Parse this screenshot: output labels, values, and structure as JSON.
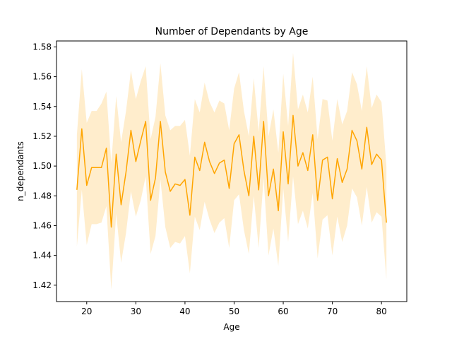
{
  "chart_data": {
    "type": "line",
    "title": "Number of Dependants by Age",
    "xlabel": "Age",
    "ylabel": "n_dependants",
    "xlim": [
      13.85,
      85.15
    ],
    "ylim": [
      1.409,
      1.584
    ],
    "xticks": [
      20,
      30,
      40,
      50,
      60,
      70,
      80
    ],
    "yticks": [
      1.42,
      1.44,
      1.46,
      1.48,
      1.5,
      1.52,
      1.54,
      1.56,
      1.58
    ],
    "ytick_labels": [
      "1.42",
      "1.44",
      "1.46",
      "1.48",
      "1.50",
      "1.52",
      "1.54",
      "1.56",
      "1.58"
    ],
    "grid": false,
    "series": [
      {
        "color": "#ffa500",
        "x": [
          18,
          19,
          20,
          21,
          22,
          23,
          24,
          25,
          26,
          27,
          28,
          29,
          30,
          31,
          32,
          33,
          34,
          35,
          36,
          37,
          38,
          39,
          40,
          41,
          42,
          43,
          44,
          45,
          46,
          47,
          48,
          49,
          50,
          51,
          52,
          53,
          54,
          55,
          56,
          57,
          58,
          59,
          60,
          61,
          62,
          63,
          64,
          65,
          66,
          67,
          68,
          69,
          70,
          71,
          72,
          73,
          74,
          75,
          76,
          77,
          78,
          79,
          80,
          81
        ],
        "values": [
          1.484,
          1.525,
          1.487,
          1.499,
          1.499,
          1.499,
          1.512,
          1.459,
          1.508,
          1.474,
          1.496,
          1.524,
          1.503,
          1.517,
          1.53,
          1.477,
          1.492,
          1.53,
          1.496,
          1.483,
          1.488,
          1.487,
          1.491,
          1.467,
          1.506,
          1.497,
          1.516,
          1.503,
          1.495,
          1.502,
          1.504,
          1.485,
          1.515,
          1.521,
          1.497,
          1.48,
          1.52,
          1.484,
          1.53,
          1.48,
          1.498,
          1.47,
          1.523,
          1.488,
          1.534,
          1.5,
          1.509,
          1.497,
          1.521,
          1.477,
          1.504,
          1.506,
          1.478,
          1.505,
          1.489,
          1.498,
          1.524,
          1.517,
          1.498,
          1.526,
          1.501,
          1.508,
          1.504,
          1.462
        ],
        "ci_upper": [
          1.521,
          1.565,
          1.529,
          1.537,
          1.537,
          1.542,
          1.55,
          1.502,
          1.547,
          1.516,
          1.537,
          1.564,
          1.545,
          1.557,
          1.567,
          1.518,
          1.533,
          1.569,
          1.534,
          1.524,
          1.527,
          1.527,
          1.531,
          1.507,
          1.545,
          1.536,
          1.556,
          1.543,
          1.536,
          1.544,
          1.542,
          1.524,
          1.552,
          1.563,
          1.537,
          1.52,
          1.559,
          1.523,
          1.567,
          1.52,
          1.538,
          1.509,
          1.562,
          1.527,
          1.576,
          1.538,
          1.548,
          1.536,
          1.56,
          1.518,
          1.545,
          1.544,
          1.517,
          1.545,
          1.528,
          1.537,
          1.563,
          1.555,
          1.537,
          1.567,
          1.539,
          1.548,
          1.543,
          1.5
        ],
        "ci_lower": [
          1.446,
          1.484,
          1.447,
          1.461,
          1.461,
          1.462,
          1.473,
          1.417,
          1.468,
          1.435,
          1.455,
          1.483,
          1.466,
          1.477,
          1.493,
          1.441,
          1.453,
          1.491,
          1.459,
          1.445,
          1.449,
          1.448,
          1.453,
          1.428,
          1.466,
          1.457,
          1.476,
          1.464,
          1.455,
          1.462,
          1.465,
          1.445,
          1.477,
          1.481,
          1.457,
          1.441,
          1.48,
          1.445,
          1.492,
          1.44,
          1.458,
          1.433,
          1.485,
          1.449,
          1.493,
          1.461,
          1.47,
          1.458,
          1.482,
          1.438,
          1.464,
          1.467,
          1.44,
          1.466,
          1.449,
          1.46,
          1.485,
          1.479,
          1.46,
          1.486,
          1.462,
          1.469,
          1.466,
          1.424
        ]
      }
    ]
  }
}
